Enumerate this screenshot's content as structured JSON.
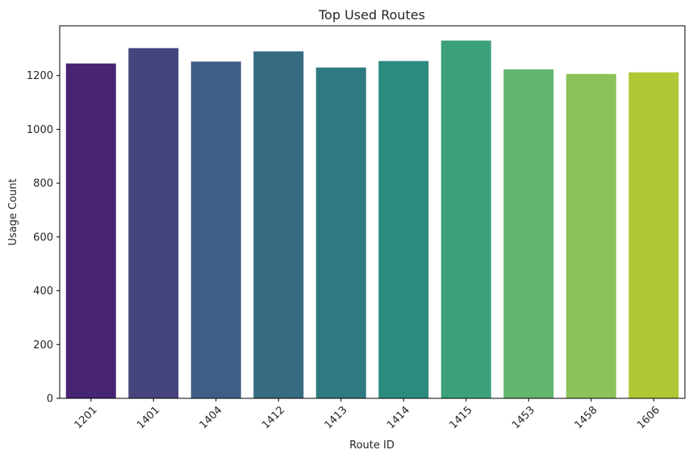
{
  "chart_data": {
    "type": "bar",
    "title": "Top Used Routes",
    "xlabel": "Route ID",
    "ylabel": "Usage Count",
    "categories": [
      "1201",
      "1401",
      "1404",
      "1412",
      "1413",
      "1414",
      "1415",
      "1453",
      "1458",
      "1606"
    ],
    "values": [
      1245,
      1302,
      1252,
      1290,
      1230,
      1254,
      1330,
      1223,
      1206,
      1212
    ],
    "colors": [
      "#482475",
      "#46447c",
      "#3f5d87",
      "#366c81",
      "#2f7a80",
      "#2b8b7f",
      "#3ca17a",
      "#62b66f",
      "#8bc35a",
      "#b1c836"
    ],
    "ylim": [
      0,
      1385
    ],
    "yticks": [
      0,
      200,
      400,
      600,
      800,
      1000,
      1200
    ],
    "xtick_rotation": 45,
    "grid": false,
    "legend": false
  }
}
